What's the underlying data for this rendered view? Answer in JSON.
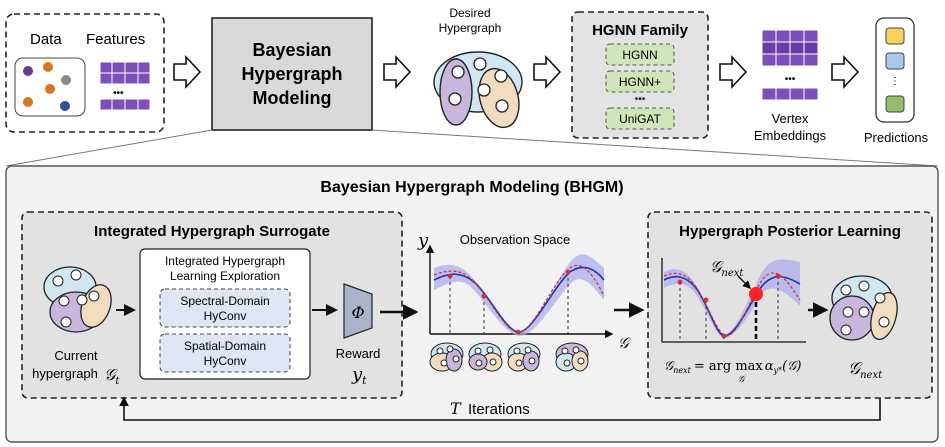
{
  "top": {
    "data_label": "Data",
    "features_label": "Features",
    "features_ellipsis": "•••",
    "bhgm_box_line1": "Bayesian",
    "bhgm_box_line2": "Hypergraph",
    "bhgm_box_line3": "Modeling",
    "desired_line1": "Desired",
    "desired_line2": "Hypergraph",
    "hgnn_family_title": "HGNN Family",
    "hgnn_models": [
      "HGNN",
      "HGNN+",
      "UniGAT"
    ],
    "hgnn_ellipsis": "•••",
    "vertex_line1": "Vertex",
    "vertex_line2": "Embeddings",
    "vertex_ellipsis": "•••",
    "predictions_label": "Predictions",
    "colors": {
      "node_purple": "#6c3a8e",
      "node_orange": "#d9741f",
      "node_gray": "#8a8a8a",
      "node_blue": "#2e4f99",
      "feature_purple": "#7e4fb8",
      "hgnn_green": "#cfe6b8",
      "pred_yellow": "#f6d35b",
      "pred_blue": "#a9c7ea",
      "pred_green": "#8fbf6a"
    }
  },
  "bhgm": {
    "title": "Bayesian Hypergraph Modeling (BHGM)",
    "surrogate": {
      "title": "Integrated Hypergraph Surrogate",
      "current_line1": "Current",
      "current_line2": "hypergraph",
      "current_symbol": "𝒢",
      "current_sub": "t",
      "exploration_line1": "Integrated Hypergraph",
      "exploration_line2": "Learning Exploration",
      "spectral_line1": "Spectral-Domain",
      "spectral_line2": "HyConv",
      "spatial_line1": "Spatial-Domain",
      "spatial_line2": "HyConv",
      "phi": "Φ",
      "reward_label": "Reward",
      "reward_symbol": "y",
      "reward_sub": "t"
    },
    "observation": {
      "title": "Observation Space",
      "y_axis": "y",
      "x_axis": "𝒢"
    },
    "posterior": {
      "title": "Hypergraph Posterior Learning",
      "next_label": "𝒢",
      "next_sub": "next",
      "formula_lhs": "𝒢",
      "formula_lhs_sub": "next",
      "formula_eq": "= arg max",
      "formula_under": "𝒢",
      "formula_alpha": "α",
      "formula_alpha_sub": "y*",
      "formula_arg": "(𝒢)",
      "output_symbol": "𝒢",
      "output_sub": "next"
    },
    "iterations_symbol": "T",
    "iterations_label": "Iterations"
  }
}
